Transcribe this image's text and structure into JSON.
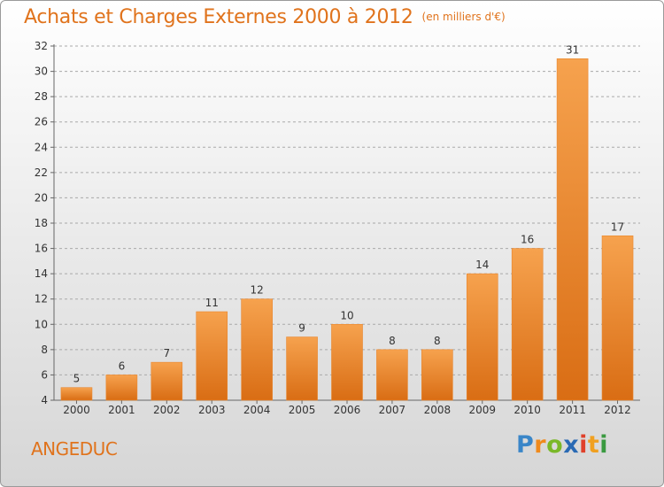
{
  "title": "Achats et Charges Externes 2000 à 2012",
  "subtitle": "(en milliers d'€)",
  "place": "ANGEDUC",
  "logo": {
    "letters": [
      "P",
      "r",
      "o",
      "x",
      "i",
      "t",
      "i"
    ],
    "colors": [
      "#3a86c8",
      "#f08a1c",
      "#7ab828",
      "#2a6ab4",
      "#e0402a",
      "#f0a020",
      "#3a9a40"
    ]
  },
  "colors": {
    "accent": "#e0731c",
    "bar_top": "#f6a24e",
    "bar_bottom": "#d96d14",
    "grid": "#a9a9a9"
  },
  "chart_data": {
    "type": "bar",
    "categories": [
      "2000",
      "2001",
      "2002",
      "2003",
      "2004",
      "2005",
      "2006",
      "2007",
      "2008",
      "2009",
      "2010",
      "2011",
      "2012"
    ],
    "values": [
      5,
      6,
      7,
      11,
      12,
      9,
      10,
      8,
      8,
      14,
      16,
      31,
      17
    ],
    "ylim": [
      4,
      32
    ],
    "yticks": [
      4,
      6,
      8,
      10,
      12,
      14,
      16,
      18,
      20,
      22,
      24,
      26,
      28,
      30,
      32
    ],
    "grid": true,
    "grid_style": "dashed horizontal"
  }
}
